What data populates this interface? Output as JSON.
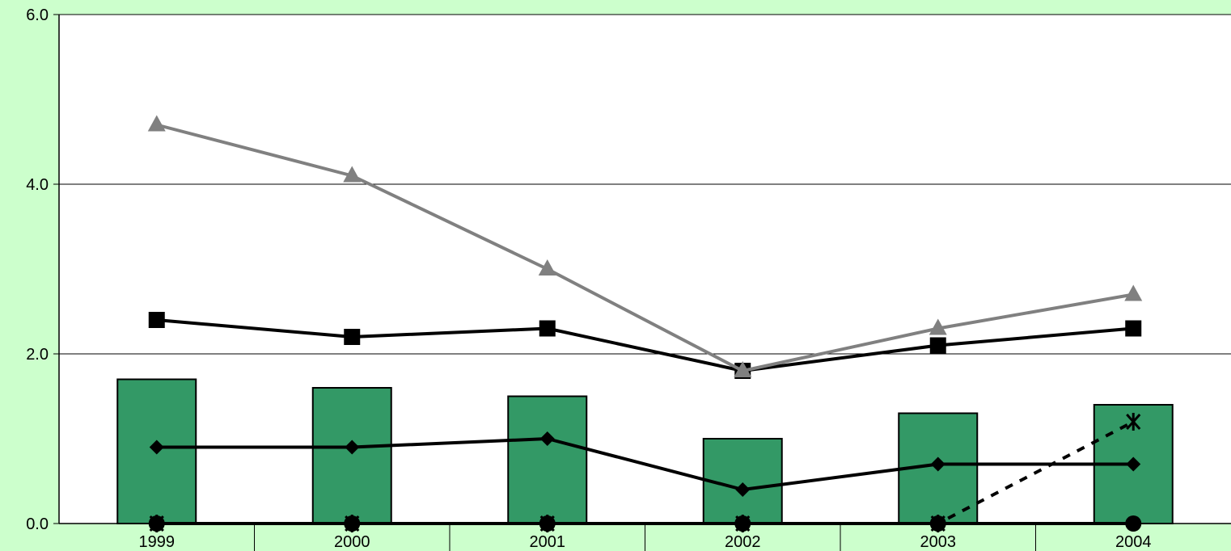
{
  "chart_data": {
    "type": "bar",
    "categories": [
      "1999",
      "2000",
      "2001",
      "2002",
      "2003",
      "2004"
    ],
    "ylim": [
      0,
      6
    ],
    "yticks": [
      "0.0",
      "2.0",
      "4.0",
      "6.0"
    ],
    "grid": true,
    "series": [
      {
        "kind": "bar",
        "values": [
          1.7,
          1.6,
          1.5,
          1.0,
          1.3,
          1.4
        ],
        "color": "#339966"
      },
      {
        "kind": "line",
        "marker": "triangle",
        "values": [
          4.7,
          4.1,
          3.0,
          1.8,
          2.3,
          2.7
        ],
        "color": "#808080"
      },
      {
        "kind": "line",
        "marker": "square",
        "values": [
          2.4,
          2.2,
          2.3,
          1.8,
          2.1,
          2.3
        ],
        "color": "#000000"
      },
      {
        "kind": "line",
        "marker": "diamond",
        "values": [
          0.9,
          0.9,
          1.0,
          0.4,
          0.7,
          0.7
        ],
        "color": "#000000"
      },
      {
        "kind": "line",
        "marker": "star",
        "dashed": true,
        "values": [
          0.0,
          0.0,
          0.0,
          0.0,
          0.0,
          1.2
        ],
        "color": "#000000"
      },
      {
        "kind": "line",
        "marker": "circle",
        "values": [
          0.0,
          0.0,
          0.0,
          0.0,
          0.0,
          0.0
        ],
        "color": "#000000"
      }
    ]
  }
}
